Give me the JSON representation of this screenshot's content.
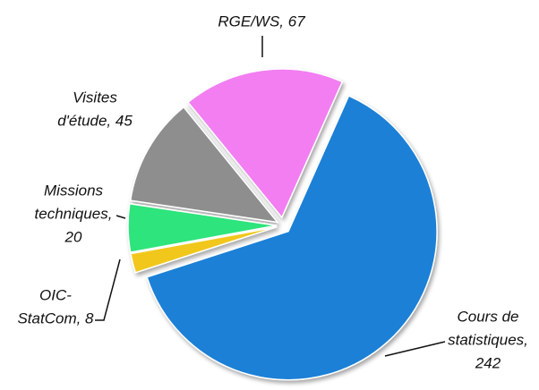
{
  "chart_data": {
    "type": "pie",
    "values": [
      242,
      8,
      20,
      45,
      67
    ],
    "labels": [
      [
        "Cours de",
        "statistiques,",
        "242"
      ],
      [
        "OIC-",
        "StatCom, 8"
      ],
      [
        "Missions",
        "techniques,",
        "20"
      ],
      [
        "Visites",
        "d'étude, 45"
      ],
      [
        "RGE/WS, 67"
      ]
    ],
    "colors": [
      "#1a80d6",
      "#f2c71c",
      "#2fe47c",
      "#8e8e8e",
      "#f27ef2"
    ]
  }
}
